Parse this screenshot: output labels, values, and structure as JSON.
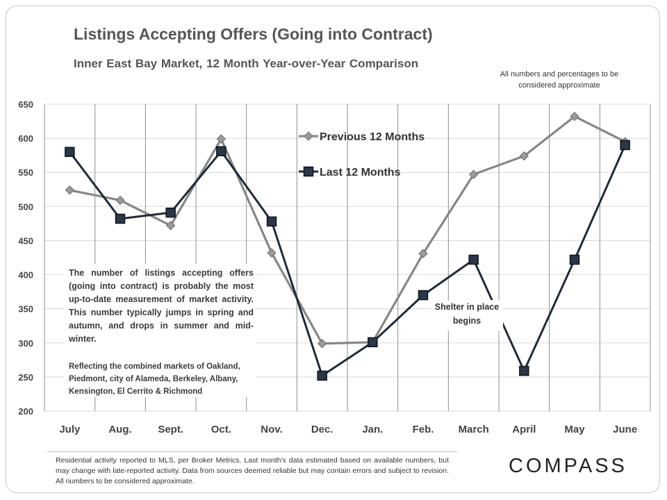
{
  "title": "Listings Accepting Offers (Going into Contract)",
  "subtitle": "Inner East Bay Market,  12 Month Year-over-Year  Comparison",
  "disclaimer": "All numbers and percentages to be considered approximate",
  "note_main": "The number of listings accepting offers (going into contract) is probably the most up-to-date measurement of market activity. This number typically jumps in spring and autumn, and drops in summer and mid-winter.",
  "note_sub": "Reflecting the combined markets of Oakland, Piedmont, city of Alameda, Berkeley, Albany, Kensington, El Cerrito & Richmond",
  "annotation": "Shelter in place begins",
  "footer": "Residential activity reported to MLS, per Broker Metrics. Last month's data estimated based on available numbers, but may change with late-reported activity. Data from sources deemed reliable but may contain errors and subject to revision. All numbers to be considered approximate.",
  "logo": "COMPASS",
  "chart_data": {
    "type": "line",
    "categories": [
      "July",
      "Aug.",
      "Sept.",
      "Oct.",
      "Nov.",
      "Dec.",
      "Jan.",
      "Feb.",
      "March",
      "April",
      "May",
      "June"
    ],
    "series": [
      {
        "name": "Previous 12 Months",
        "color": "#868686",
        "marker": "diamond",
        "values": [
          524,
          509,
          472,
          599,
          432,
          299,
          301,
          431,
          547,
          574,
          632,
          595
        ]
      },
      {
        "name": "Last 12 Months",
        "color": "#1f2a38",
        "marker": "square",
        "values": [
          580,
          482,
          491,
          581,
          478,
          252,
          301,
          370,
          422,
          259,
          422,
          590
        ]
      }
    ],
    "yticks": [
      200,
      250,
      300,
      350,
      400,
      450,
      500,
      550,
      600,
      650
    ],
    "ylim": [
      200,
      650
    ],
    "grid": "vertical and horizontal",
    "legend": "top-center, inside plot"
  }
}
